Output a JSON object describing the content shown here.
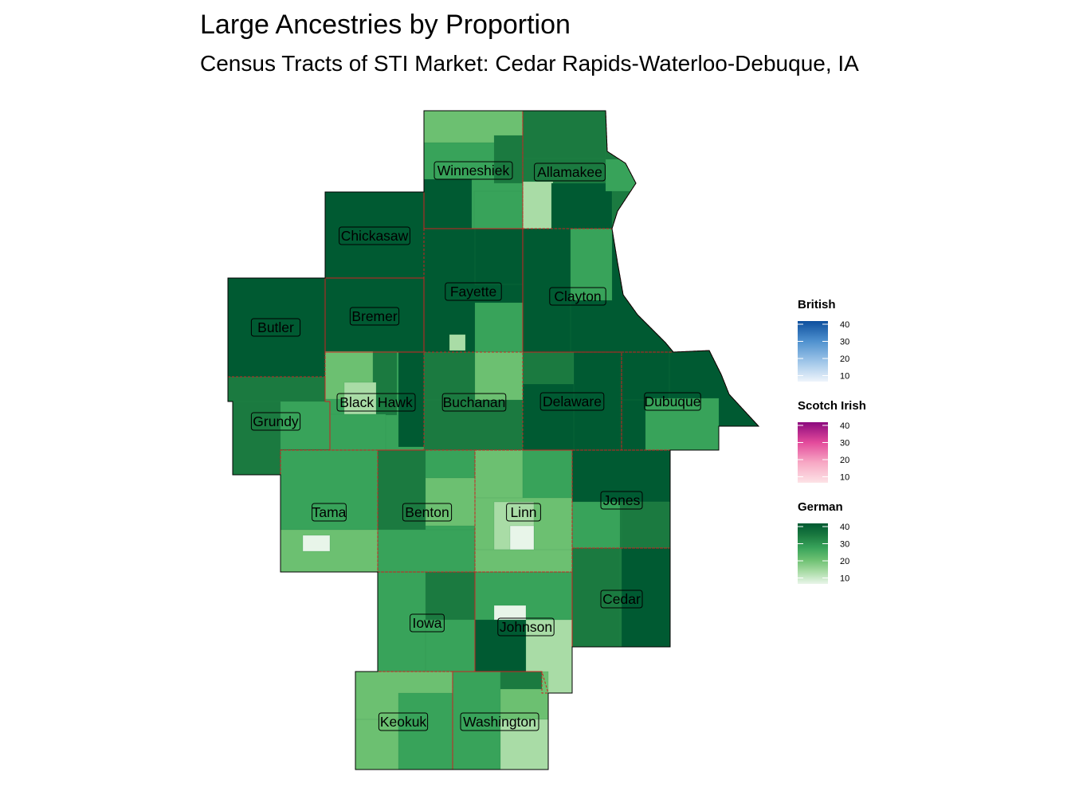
{
  "title": "Large Ancestries by Proportion",
  "subtitle": "Census Tracts of STI Market: Cedar Rapids-Waterloo-Debuque, IA",
  "colors": {
    "county_border": "#cc2222",
    "tract_border": "#2e8b4e",
    "outline": "#000000",
    "green_scale": [
      "#e8f5e9",
      "#a9dca6",
      "#6cc071",
      "#38a35a",
      "#1b7a40",
      "#005a32"
    ],
    "blue_scale": [
      "#eef4fb",
      "#9ec5e8",
      "#4f91cf",
      "#0d4f9e"
    ],
    "pink_scale": [
      "#fde3e6",
      "#f7a8c4",
      "#e34a9b",
      "#8c0a7e"
    ]
  },
  "counties": [
    {
      "name": "Winneshiek",
      "shade": 3
    },
    {
      "name": "Allamakee",
      "shade": 4
    },
    {
      "name": "Chickasaw",
      "shade": 5
    },
    {
      "name": "Fayette",
      "shade": 5
    },
    {
      "name": "Clayton",
      "shade": 5
    },
    {
      "name": "Butler",
      "shade": 5
    },
    {
      "name": "Bremer",
      "shade": 5
    },
    {
      "name": "Black Hawk",
      "shade": 3
    },
    {
      "name": "Buchanan",
      "shade": 4
    },
    {
      "name": "Delaware",
      "shade": 5
    },
    {
      "name": "Dubuque",
      "shade": 5
    },
    {
      "name": "Grundy",
      "shade": 4
    },
    {
      "name": "Tama",
      "shade": 2
    },
    {
      "name": "Benton",
      "shade": 3
    },
    {
      "name": "Linn",
      "shade": 2
    },
    {
      "name": "Jones",
      "shade": 4
    },
    {
      "name": "Iowa",
      "shade": 3
    },
    {
      "name": "Johnson",
      "shade": 2
    },
    {
      "name": "Cedar",
      "shade": 4
    },
    {
      "name": "Keokuk",
      "shade": 2
    },
    {
      "name": "Washington",
      "shade": 3
    }
  ],
  "legends": [
    {
      "title": "British",
      "ticks": [
        "40",
        "30",
        "20",
        "10"
      ],
      "scale": "blue_scale"
    },
    {
      "title": "Scotch Irish",
      "ticks": [
        "40",
        "30",
        "20",
        "10"
      ],
      "scale": "pink_scale"
    },
    {
      "title": "German",
      "ticks": [
        "40",
        "30",
        "20",
        "10"
      ],
      "scale": "green_scale"
    }
  ]
}
